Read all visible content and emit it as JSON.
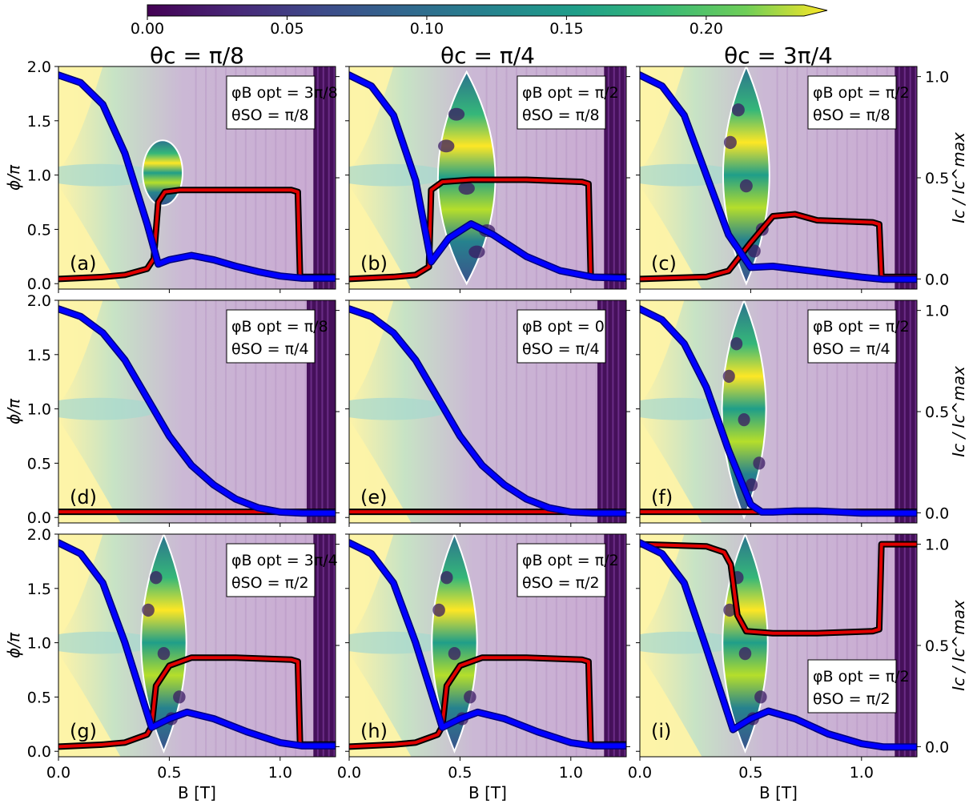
{
  "colorbar": {
    "ticks": [
      "0.00",
      "0.05",
      "0.10",
      "0.15",
      "0.20"
    ],
    "range": [
      0.0,
      0.235
    ],
    "extend": "max",
    "colormap": "viridis"
  },
  "column_titles": [
    "θc = π/8",
    "θc = π/4",
    "θc = 3π/4"
  ],
  "axes": {
    "xlabel": "B [T]",
    "ylabel_left": "ϕ/π",
    "ylabel_right": "Ic / Ic^max",
    "x_ticks": [
      "0.0",
      "0.5",
      "1.0"
    ],
    "y_ticks_left": [
      "0.0",
      "0.5",
      "1.0",
      "1.5",
      "2.0"
    ],
    "y_ticks_right": [
      "0.0",
      "0.5",
      "1.0"
    ]
  },
  "colors": {
    "ground_state_curve": "#0000ff",
    "critical_current_curve": "#e00000",
    "overlay": "#c8a8d0",
    "high_value": "#fde725"
  },
  "chart_data": [
    {
      "type": "heatmap",
      "label": "(a)",
      "annotation": [
        "φB opt = 3π/8",
        "θSO = π/8"
      ],
      "annotation_position": "top-right",
      "topo_region": {
        "shape": "ellipse",
        "B_range": [
          0.38,
          0.56
        ],
        "phi_range": [
          0.72,
          1.32
        ]
      },
      "blue_curve": {
        "B": [
          0,
          0.1,
          0.2,
          0.3,
          0.4,
          0.45,
          0.5,
          0.6,
          0.7,
          0.8,
          0.9,
          1.0,
          1.1,
          1.25
        ],
        "phi": [
          1.92,
          1.85,
          1.65,
          1.2,
          0.55,
          0.18,
          0.22,
          0.26,
          0.22,
          0.16,
          0.11,
          0.07,
          0.05,
          0.05
        ]
      },
      "red_curve": {
        "B": [
          0,
          0.2,
          0.3,
          0.4,
          0.43,
          0.45,
          0.48,
          0.55,
          0.7,
          0.9,
          1.05,
          1.08,
          1.09,
          1.25
        ],
        "Ic": [
          0,
          0.01,
          0.02,
          0.05,
          0.1,
          0.38,
          0.43,
          0.44,
          0.44,
          0.44,
          0.44,
          0.43,
          0.01,
          0.01
        ]
      }
    },
    {
      "type": "heatmap",
      "label": "(b)",
      "annotation": [
        "φB opt = π/2",
        "θSO = π/8"
      ],
      "annotation_position": "top-right",
      "topo_region": {
        "shape": "lens",
        "B_range": [
          0.3,
          0.76
        ],
        "phi_range": [
          0.0,
          1.95
        ]
      },
      "blue_curve": {
        "B": [
          0,
          0.1,
          0.2,
          0.3,
          0.37,
          0.45,
          0.55,
          0.65,
          0.8,
          0.95,
          1.1,
          1.25
        ],
        "phi": [
          1.92,
          1.82,
          1.55,
          0.95,
          0.2,
          0.42,
          0.55,
          0.45,
          0.25,
          0.12,
          0.06,
          0.05
        ]
      },
      "red_curve": {
        "B": [
          0,
          0.2,
          0.3,
          0.36,
          0.37,
          0.42,
          0.55,
          0.8,
          1.05,
          1.08,
          1.09,
          1.25
        ],
        "Ic": [
          0,
          0.01,
          0.02,
          0.06,
          0.44,
          0.48,
          0.49,
          0.49,
          0.48,
          0.47,
          0.01,
          0.01
        ]
      }
    },
    {
      "type": "heatmap",
      "label": "(c)",
      "annotation": [
        "φB opt = π/2",
        "θSO = π/8"
      ],
      "annotation_position": "top-right",
      "topo_region": {
        "shape": "lens",
        "B_range": [
          0.3,
          0.66
        ],
        "phi_range": [
          0.0,
          2.0
        ]
      },
      "blue_curve": {
        "B": [
          0,
          0.1,
          0.2,
          0.3,
          0.4,
          0.5,
          0.6,
          0.8,
          1.0,
          1.1,
          1.25
        ],
        "phi": [
          1.92,
          1.82,
          1.55,
          1.0,
          0.45,
          0.15,
          0.16,
          0.11,
          0.06,
          0.04,
          0.04
        ]
      },
      "red_curve": {
        "B": [
          0,
          0.3,
          0.4,
          0.5,
          0.6,
          0.7,
          0.8,
          1.05,
          1.08,
          1.09,
          1.25
        ],
        "Ic": [
          0,
          0.01,
          0.04,
          0.18,
          0.31,
          0.32,
          0.29,
          0.28,
          0.27,
          0.01,
          0.01
        ]
      }
    },
    {
      "type": "heatmap",
      "label": "(d)",
      "annotation": [
        "φB opt = π/8",
        "θSO = π/4"
      ],
      "annotation_position": "top-right",
      "topo_region": null,
      "blue_curve": {
        "B": [
          0,
          0.1,
          0.2,
          0.3,
          0.4,
          0.5,
          0.6,
          0.7,
          0.8,
          0.9,
          1.0,
          1.1,
          1.25
        ],
        "phi": [
          1.92,
          1.85,
          1.7,
          1.45,
          1.1,
          0.75,
          0.48,
          0.3,
          0.17,
          0.09,
          0.05,
          0.04,
          0.04
        ]
      },
      "red_curve": {
        "B": [
          0,
          1.25
        ],
        "Ic": [
          0.005,
          0.005
        ]
      }
    },
    {
      "type": "heatmap",
      "label": "(e)",
      "annotation": [
        "φB opt = 0",
        "θSO = π/4"
      ],
      "annotation_position": "top-right",
      "topo_region": null,
      "blue_curve": {
        "B": [
          0,
          0.1,
          0.2,
          0.3,
          0.4,
          0.5,
          0.6,
          0.7,
          0.8,
          0.9,
          1.0,
          1.1,
          1.25
        ],
        "phi": [
          1.92,
          1.85,
          1.7,
          1.45,
          1.1,
          0.75,
          0.48,
          0.3,
          0.17,
          0.09,
          0.05,
          0.04,
          0.04
        ]
      },
      "red_curve": {
        "B": [
          0,
          1.25
        ],
        "Ic": [
          0.005,
          0.005
        ]
      }
    },
    {
      "type": "heatmap",
      "label": "(f)",
      "annotation": [
        "φB opt = π/2",
        "θSO = π/4"
      ],
      "annotation_position": "top-right",
      "topo_region": {
        "shape": "lens",
        "B_range": [
          0.3,
          0.64
        ],
        "phi_range": [
          0.0,
          2.0
        ]
      },
      "blue_curve": {
        "B": [
          0,
          0.1,
          0.2,
          0.3,
          0.4,
          0.5,
          0.55,
          0.6,
          0.7,
          0.8,
          0.9,
          1.0,
          1.1,
          1.25
        ],
        "phi": [
          1.92,
          1.82,
          1.6,
          1.2,
          0.62,
          0.12,
          0.05,
          0.05,
          0.06,
          0.06,
          0.05,
          0.04,
          0.04,
          0.04
        ]
      },
      "red_curve": {
        "B": [
          0,
          1.25
        ],
        "Ic": [
          0.005,
          0.005
        ]
      }
    },
    {
      "type": "heatmap",
      "label": "(g)",
      "annotation": [
        "φB opt = 3π/4",
        "θSO = π/2"
      ],
      "annotation_position": "top-right",
      "topo_region": {
        "shape": "lens",
        "B_range": [
          0.3,
          0.65
        ],
        "phi_range": [
          0.0,
          2.0
        ]
      },
      "blue_curve": {
        "B": [
          0,
          0.1,
          0.2,
          0.3,
          0.42,
          0.5,
          0.58,
          0.7,
          0.85,
          1.0,
          1.1,
          1.25
        ],
        "phi": [
          1.92,
          1.82,
          1.55,
          1.0,
          0.22,
          0.3,
          0.36,
          0.3,
          0.18,
          0.08,
          0.05,
          0.05
        ]
      },
      "red_curve": {
        "B": [
          0,
          0.2,
          0.3,
          0.4,
          0.42,
          0.44,
          0.5,
          0.6,
          0.8,
          1.05,
          1.08,
          1.09,
          1.25
        ],
        "Ic": [
          0,
          0.01,
          0.02,
          0.06,
          0.1,
          0.3,
          0.4,
          0.44,
          0.44,
          0.43,
          0.42,
          0.01,
          0.01
        ]
      }
    },
    {
      "type": "heatmap",
      "label": "(h)",
      "annotation": [
        "φB opt = π/2",
        "θSO = π/2"
      ],
      "annotation_position": "top-right",
      "topo_region": {
        "shape": "lens",
        "B_range": [
          0.3,
          0.65
        ],
        "phi_range": [
          0.0,
          2.0
        ]
      },
      "blue_curve": {
        "B": [
          0,
          0.1,
          0.2,
          0.3,
          0.42,
          0.5,
          0.58,
          0.7,
          0.85,
          1.0,
          1.1,
          1.25
        ],
        "phi": [
          1.92,
          1.82,
          1.55,
          1.0,
          0.22,
          0.3,
          0.36,
          0.3,
          0.18,
          0.08,
          0.05,
          0.05
        ]
      },
      "red_curve": {
        "B": [
          0,
          0.2,
          0.3,
          0.4,
          0.42,
          0.44,
          0.5,
          0.6,
          0.8,
          1.05,
          1.08,
          1.09,
          1.25
        ],
        "Ic": [
          0,
          0.01,
          0.02,
          0.06,
          0.1,
          0.3,
          0.4,
          0.44,
          0.44,
          0.43,
          0.42,
          0.01,
          0.01
        ]
      }
    },
    {
      "type": "heatmap",
      "label": "(i)",
      "annotation": [
        "φB opt = π/2",
        "θSO = π/2"
      ],
      "annotation_position": "bottom-right",
      "topo_region": {
        "shape": "lens",
        "B_range": [
          0.3,
          0.65
        ],
        "phi_range": [
          0.0,
          2.0
        ]
      },
      "blue_curve": {
        "B": [
          0,
          0.1,
          0.2,
          0.3,
          0.42,
          0.5,
          0.58,
          0.7,
          0.85,
          1.0,
          1.1,
          1.25
        ],
        "phi": [
          1.92,
          1.82,
          1.55,
          0.95,
          0.2,
          0.3,
          0.37,
          0.3,
          0.16,
          0.07,
          0.04,
          0.04
        ]
      },
      "red_curve": {
        "B": [
          0,
          0.3,
          0.38,
          0.41,
          0.44,
          0.48,
          0.6,
          0.8,
          1.05,
          1.08,
          1.09,
          1.25
        ],
        "Ic": [
          1.0,
          0.99,
          0.96,
          0.9,
          0.65,
          0.57,
          0.56,
          0.56,
          0.57,
          0.58,
          1.0,
          1.0
        ]
      }
    }
  ]
}
